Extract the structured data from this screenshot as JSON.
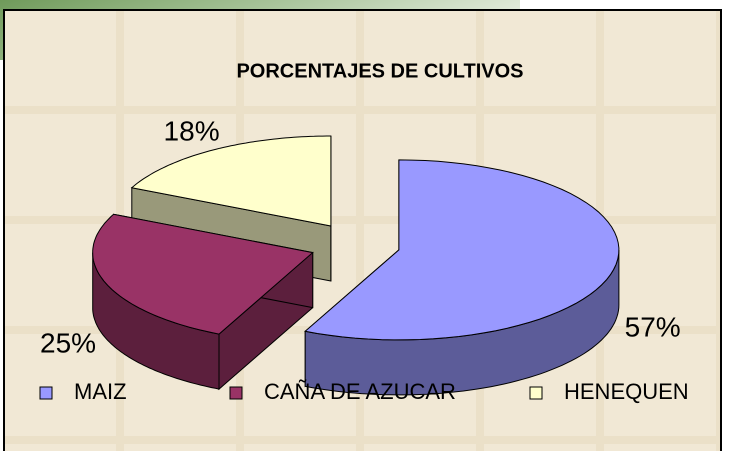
{
  "chart_data": {
    "type": "pie",
    "title": "PORCENTAJES DE CULTIVOS",
    "categories": [
      "MAIZ",
      "CAÑA DE AZUCAR",
      "HENEQUEN"
    ],
    "values": [
      57,
      25,
      18
    ],
    "value_labels": [
      "57%",
      "25%",
      "18%"
    ],
    "colors": [
      "#9999ff",
      "#993366",
      "#ffffcc"
    ],
    "legend": "bottom"
  }
}
